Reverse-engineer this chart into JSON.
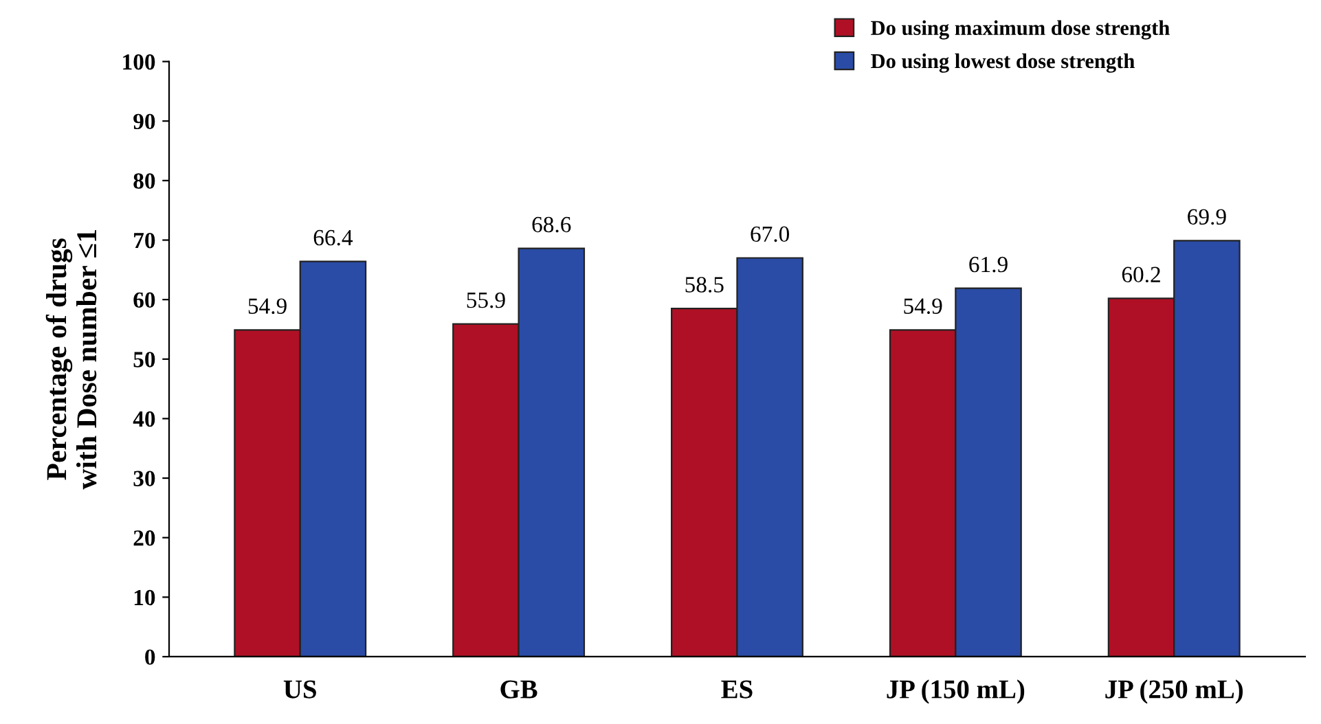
{
  "chart_data": {
    "type": "bar",
    "categories": [
      "US",
      "GB",
      "ES",
      "JP (150 mL)",
      "JP (250 mL)"
    ],
    "series": [
      {
        "name": "Do using maximum dose strength",
        "color": "#b01025",
        "values": [
          54.9,
          55.9,
          58.5,
          54.9,
          60.2
        ],
        "value_labels": [
          "54.9",
          "55.9",
          "58.5",
          "54.9",
          "60.2"
        ]
      },
      {
        "name": "Do using lowest dose strength",
        "color": "#2a4ca6",
        "values": [
          66.4,
          68.6,
          67.0,
          61.9,
          69.9
        ],
        "value_labels": [
          "66.4",
          "68.6",
          "67.0",
          "61.9",
          "69.9"
        ]
      }
    ],
    "ylabel": "Percentage of drugs\nwith Dose number ≤1",
    "ylim": [
      0,
      100
    ],
    "yticks": [
      0,
      10,
      20,
      30,
      40,
      50,
      60,
      70,
      80,
      90,
      100
    ],
    "legend": "top right",
    "grid": false
  }
}
